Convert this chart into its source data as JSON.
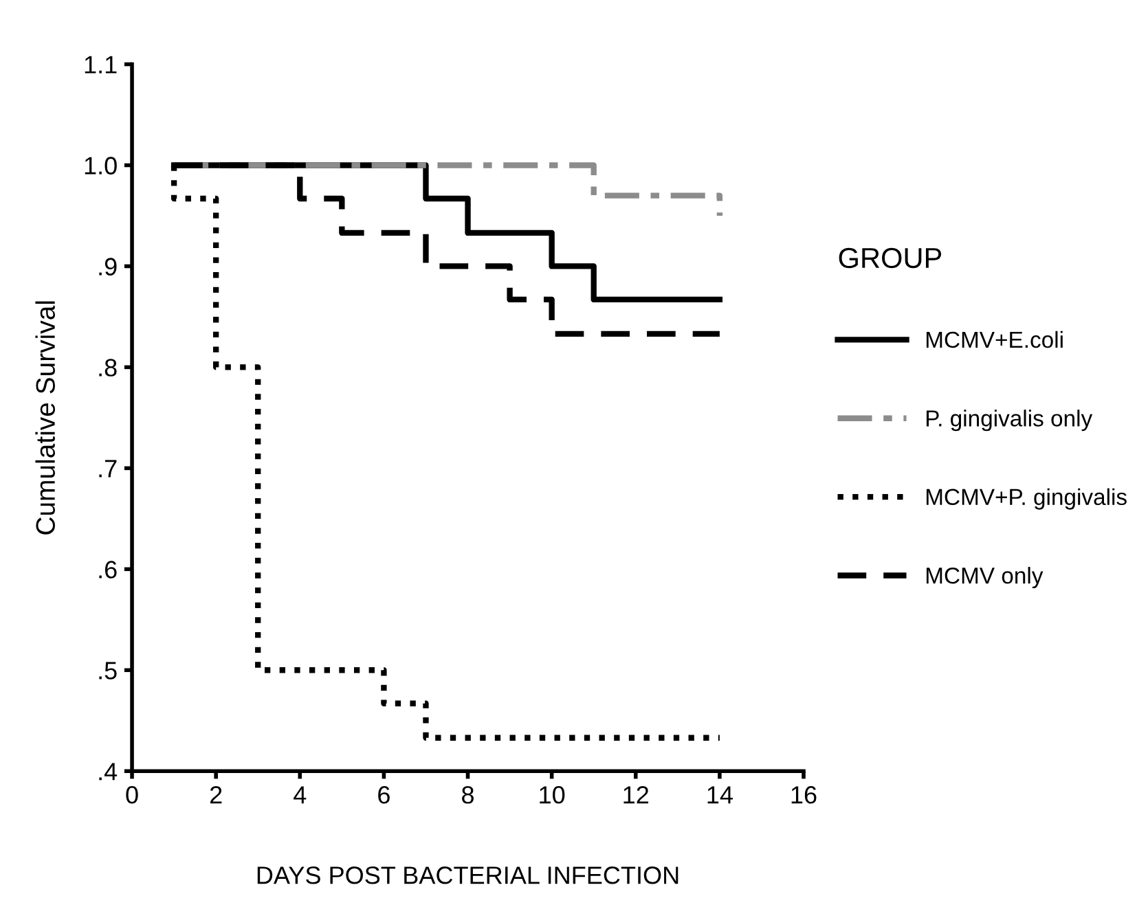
{
  "chart_data": {
    "type": "step",
    "xlabel": "DAYS POST BACTERIAL INFECTION",
    "ylabel": "Cumulative Survival",
    "legend_title": "GROUP",
    "legend": "right",
    "grid": false,
    "xlim": [
      0,
      16
    ],
    "xticks": [
      0,
      2,
      4,
      6,
      8,
      10,
      12,
      14,
      16
    ],
    "ylim": [
      0.4,
      1.1
    ],
    "yticks": [
      {
        "value": 0.4,
        "label": ".4"
      },
      {
        "value": 0.5,
        "label": ".5"
      },
      {
        "value": 0.6,
        "label": ".6"
      },
      {
        "value": 0.7,
        "label": ".7"
      },
      {
        "value": 0.8,
        "label": ".8"
      },
      {
        "value": 0.9,
        "label": ".9"
      },
      {
        "value": 1.0,
        "label": "1.0"
      },
      {
        "value": 1.1,
        "label": "1.1"
      }
    ],
    "series": [
      {
        "name": "MCMV+E.coli",
        "color": "#000000",
        "line_style": "solid",
        "x": [
          1,
          7,
          8,
          10,
          11,
          14
        ],
        "values": [
          1.0,
          0.967,
          0.933,
          0.9,
          0.867,
          0.867
        ]
      },
      {
        "name": "P. gingivalis only",
        "color": "#8c8c8c",
        "line_style": "dashdot",
        "x": [
          1,
          11,
          14,
          14
        ],
        "values": [
          1.0,
          0.97,
          0.97,
          0.95
        ]
      },
      {
        "name": "MCMV+P. gingivalis",
        "color": "#000000",
        "line_style": "dotted",
        "x": [
          1,
          1,
          2,
          3,
          6,
          7,
          14
        ],
        "values": [
          1.0,
          0.967,
          0.8,
          0.5,
          0.467,
          0.433,
          0.433
        ]
      },
      {
        "name": "MCMV only",
        "color": "#000000",
        "line_style": "dashed",
        "x": [
          1,
          4,
          5,
          7,
          9,
          10,
          14
        ],
        "values": [
          1.0,
          0.967,
          0.933,
          0.9,
          0.867,
          0.833,
          0.833
        ]
      }
    ]
  }
}
